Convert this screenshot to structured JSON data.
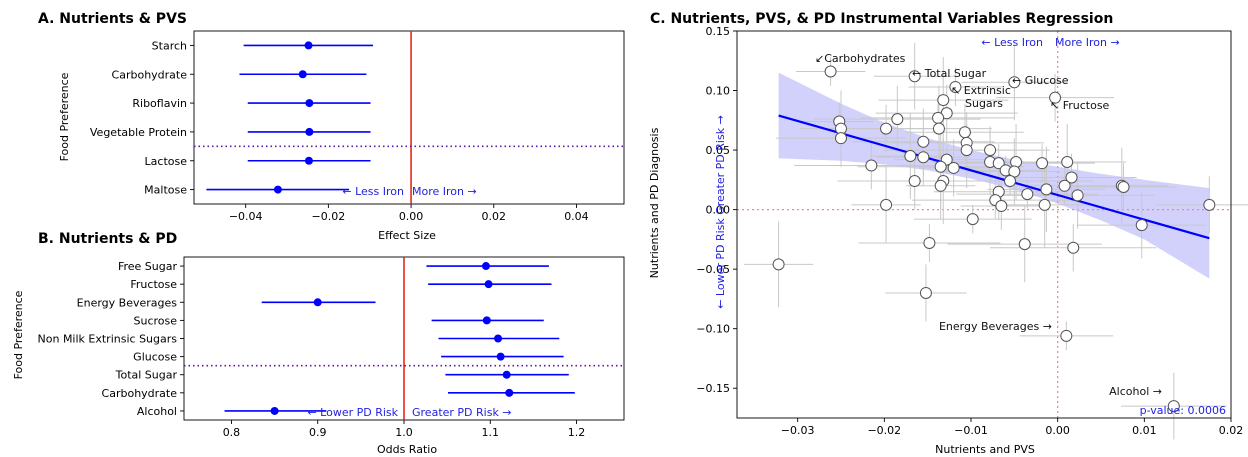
{
  "colors": {
    "marker": "#0000ff",
    "zero_line": "#e8281b",
    "divider": "#5a189a",
    "ci_band": "#c6c6fb",
    "error_bar": "#c8c8c8",
    "annotation_text": "#1f1fe0",
    "zero_dots": "#f08a8a"
  },
  "chart_data": [
    {
      "panel": "A",
      "type": "scatter",
      "title": "A. Nutrients & PVS",
      "xlabel": "Effect Size",
      "ylabel": "Food Preference",
      "xlim": [
        -0.0525,
        0.0515
      ],
      "xticks": [
        "−0.04",
        "−0.02",
        "0.00",
        "0.02",
        "0.04"
      ],
      "xtick_values": [
        -0.04,
        -0.02,
        0.0,
        0.02,
        0.04
      ],
      "categories": [
        "Starch",
        "Carbohydrate",
        "Riboflavin",
        "Vegetable Protein",
        "Lactose",
        "Maltose"
      ],
      "estimates": [
        -0.0248,
        -0.0262,
        -0.0246,
        -0.0246,
        -0.0247,
        -0.0322
      ],
      "ci_low": [
        -0.0405,
        -0.0415,
        -0.0395,
        -0.0395,
        -0.0395,
        -0.0495
      ],
      "ci_high": [
        -0.0092,
        -0.0108,
        -0.0098,
        -0.0098,
        -0.0098,
        -0.015
      ],
      "divider_after_index": 3,
      "annotation_left": "← Less Iron",
      "annotation_right": "More Iron →",
      "grid": false
    },
    {
      "panel": "B",
      "type": "scatter",
      "title": "B. Nutrients & PD",
      "xlabel": "Odds Ratio",
      "ylabel": "Food Preference",
      "xlim": [
        0.745,
        1.255
      ],
      "xticks": [
        "0.8",
        "0.9",
        "1.0",
        "1.1",
        "1.2"
      ],
      "xtick_values": [
        0.8,
        0.9,
        1.0,
        1.1,
        1.2
      ],
      "categories": [
        "Free Sugar",
        "Fructose",
        "Energy Beverages",
        "Sucrose",
        "Non Milk Extrinsic Sugars",
        "Glucose",
        "Total Sugar",
        "Carbohydrate",
        "Alcohol"
      ],
      "estimates": [
        1.095,
        1.098,
        0.9,
        1.096,
        1.109,
        1.112,
        1.119,
        1.122,
        0.85
      ],
      "ci_low": [
        1.026,
        1.028,
        0.835,
        1.032,
        1.04,
        1.043,
        1.048,
        1.051,
        0.792
      ],
      "ci_high": [
        1.168,
        1.171,
        0.967,
        1.162,
        1.18,
        1.185,
        1.191,
        1.198,
        0.91
      ],
      "divider_after_index": 5,
      "annotation_left": "← Lower PD Risk",
      "annotation_right": "Greater PD Risk →",
      "grid": false
    },
    {
      "panel": "C",
      "type": "scatter",
      "title": "C. Nutrients, PVS, & PD Instrumental Variables Regression",
      "xlabel": "Nutrients and PVS",
      "ylabel": "Nutrients and PD Diagnosis",
      "xlim": [
        -0.037,
        0.02
      ],
      "ylim": [
        -0.175,
        0.15
      ],
      "xticks": [
        "−0.03",
        "−0.02",
        "−0.01",
        "0.00",
        "0.01",
        "0.02"
      ],
      "xtick_values": [
        -0.03,
        -0.02,
        -0.01,
        0.0,
        0.01,
        0.02
      ],
      "yticks": [
        "0.15",
        "0.10",
        "0.05",
        "0.00",
        "−0.05",
        "−0.10",
        "−0.15"
      ],
      "ytick_values": [
        0.15,
        0.1,
        0.05,
        0.0,
        -0.05,
        -0.1,
        -0.15
      ],
      "fit_line": {
        "x": [
          -0.0322,
          0.0175
        ],
        "y": [
          0.079,
          -0.024
        ]
      },
      "ci_band_upper": [
        [
          -0.0322,
          0.115
        ],
        [
          -0.025,
          0.089
        ],
        [
          -0.02,
          0.073
        ],
        [
          -0.015,
          0.06
        ],
        [
          -0.01,
          0.05
        ],
        [
          -0.005,
          0.042
        ],
        [
          0.0,
          0.036
        ],
        [
          0.005,
          0.03
        ],
        [
          0.01,
          0.025
        ],
        [
          0.0175,
          0.018
        ]
      ],
      "ci_band_lower": [
        [
          -0.0322,
          0.043
        ],
        [
          -0.025,
          0.041
        ],
        [
          -0.02,
          0.038
        ],
        [
          -0.015,
          0.033
        ],
        [
          -0.01,
          0.026
        ],
        [
          -0.005,
          0.017
        ],
        [
          0.0,
          0.005
        ],
        [
          0.005,
          -0.009
        ],
        [
          0.01,
          -0.025
        ],
        [
          0.0175,
          -0.058
        ]
      ],
      "points": [
        {
          "x": -0.0262,
          "y": 0.116
        },
        {
          "x": -0.0165,
          "y": 0.112
        },
        {
          "x": -0.0118,
          "y": 0.103
        },
        {
          "x": -0.005,
          "y": 0.107
        },
        {
          "x": -0.0003,
          "y": 0.094
        },
        {
          "x": -0.0132,
          "y": 0.092
        },
        {
          "x": -0.0128,
          "y": 0.081
        },
        {
          "x": -0.0138,
          "y": 0.077
        },
        {
          "x": -0.0185,
          "y": 0.076
        },
        {
          "x": -0.0252,
          "y": 0.074
        },
        {
          "x": -0.025,
          "y": 0.068
        },
        {
          "x": -0.0198,
          "y": 0.068
        },
        {
          "x": -0.0137,
          "y": 0.068
        },
        {
          "x": -0.0107,
          "y": 0.065
        },
        {
          "x": -0.025,
          "y": 0.06
        },
        {
          "x": -0.0155,
          "y": 0.057
        },
        {
          "x": -0.0105,
          "y": 0.056
        },
        {
          "x": -0.0105,
          "y": 0.05
        },
        {
          "x": -0.0078,
          "y": 0.05
        },
        {
          "x": -0.017,
          "y": 0.045
        },
        {
          "x": -0.0155,
          "y": 0.044
        },
        {
          "x": -0.0128,
          "y": 0.042
        },
        {
          "x": -0.0078,
          "y": 0.04
        },
        {
          "x": -0.0068,
          "y": 0.039
        },
        {
          "x": -0.0048,
          "y": 0.04
        },
        {
          "x": -0.0215,
          "y": 0.037
        },
        {
          "x": -0.0135,
          "y": 0.036
        },
        {
          "x": -0.012,
          "y": 0.035
        },
        {
          "x": -0.006,
          "y": 0.033
        },
        {
          "x": -0.005,
          "y": 0.032
        },
        {
          "x": -0.0018,
          "y": 0.039
        },
        {
          "x": 0.0011,
          "y": 0.04
        },
        {
          "x": 0.0016,
          "y": 0.027
        },
        {
          "x": -0.0132,
          "y": 0.024
        },
        {
          "x": -0.0165,
          "y": 0.024
        },
        {
          "x": -0.0055,
          "y": 0.024
        },
        {
          "x": -0.0135,
          "y": 0.02
        },
        {
          "x": 0.0008,
          "y": 0.02
        },
        {
          "x": 0.0074,
          "y": 0.02
        },
        {
          "x": 0.0076,
          "y": 0.019
        },
        {
          "x": -0.0013,
          "y": 0.017
        },
        {
          "x": -0.0068,
          "y": 0.015
        },
        {
          "x": -0.0035,
          "y": 0.013
        },
        {
          "x": 0.0023,
          "y": 0.012
        },
        {
          "x": -0.0072,
          "y": 0.008
        },
        {
          "x": -0.0198,
          "y": 0.004
        },
        {
          "x": -0.0065,
          "y": 0.003
        },
        {
          "x": -0.0015,
          "y": 0.004
        },
        {
          "x": 0.0175,
          "y": 0.004
        },
        {
          "x": -0.0098,
          "y": -0.008
        },
        {
          "x": 0.0097,
          "y": -0.013
        },
        {
          "x": -0.0148,
          "y": -0.028
        },
        {
          "x": -0.0038,
          "y": -0.029
        },
        {
          "x": 0.0018,
          "y": -0.032
        },
        {
          "x": -0.0322,
          "y": -0.046
        },
        {
          "x": -0.0152,
          "y": -0.07
        },
        {
          "x": 0.001,
          "y": -0.106
        },
        {
          "x": 0.0134,
          "y": -0.165
        }
      ],
      "point_labels": [
        {
          "text": "↙Carbohydrates"
        },
        {
          "text": "← Total Sugar"
        },
        {
          "text": "← Glucose"
        },
        {
          "text": "↖ Extrinsic"
        },
        {
          "text": "Sugars"
        },
        {
          "text": "↖ Fructose"
        },
        {
          "text": "Energy Beverages →"
        },
        {
          "text": "Alcohol →"
        }
      ],
      "quadrant_left_label": "← Less Iron",
      "quadrant_right_label": "More Iron →",
      "vertical_label": "← Lower PD Risk    Greater PD Risk →",
      "p_value": "p-value: 0.0006",
      "grid": false
    }
  ]
}
